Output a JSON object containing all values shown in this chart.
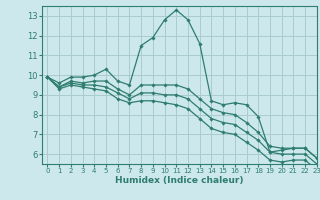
{
  "xlabel": "Humidex (Indice chaleur)",
  "bg_color": "#cce8ed",
  "grid_color": "#aacccc",
  "line_color": "#2e7d6e",
  "xlim": [
    -0.5,
    23
  ],
  "ylim": [
    5.5,
    13.5
  ],
  "xticks": [
    0,
    1,
    2,
    3,
    4,
    5,
    6,
    7,
    8,
    9,
    10,
    11,
    12,
    13,
    14,
    15,
    16,
    17,
    18,
    19,
    20,
    21,
    22,
    23
  ],
  "yticks": [
    6,
    7,
    8,
    9,
    10,
    11,
    12,
    13
  ],
  "lines": [
    [
      9.9,
      9.6,
      9.9,
      9.9,
      10.0,
      10.3,
      9.7,
      9.5,
      11.5,
      11.9,
      12.8,
      13.3,
      12.8,
      11.6,
      8.7,
      8.5,
      8.6,
      8.5,
      7.9,
      6.1,
      6.2,
      6.3,
      6.3,
      5.8
    ],
    [
      9.9,
      9.4,
      9.7,
      9.6,
      9.7,
      9.7,
      9.3,
      9.0,
      9.5,
      9.5,
      9.5,
      9.5,
      9.3,
      8.8,
      8.3,
      8.1,
      8.0,
      7.6,
      7.1,
      6.4,
      6.3,
      6.3,
      6.3,
      5.8
    ],
    [
      9.9,
      9.4,
      9.6,
      9.5,
      9.5,
      9.4,
      9.1,
      8.8,
      9.1,
      9.1,
      9.0,
      9.0,
      8.8,
      8.3,
      7.8,
      7.6,
      7.5,
      7.1,
      6.7,
      6.1,
      6.0,
      6.0,
      6.0,
      5.5
    ],
    [
      9.9,
      9.3,
      9.5,
      9.4,
      9.3,
      9.2,
      8.8,
      8.6,
      8.7,
      8.7,
      8.6,
      8.5,
      8.3,
      7.8,
      7.3,
      7.1,
      7.0,
      6.6,
      6.2,
      5.7,
      5.6,
      5.7,
      5.7,
      5.2
    ]
  ]
}
